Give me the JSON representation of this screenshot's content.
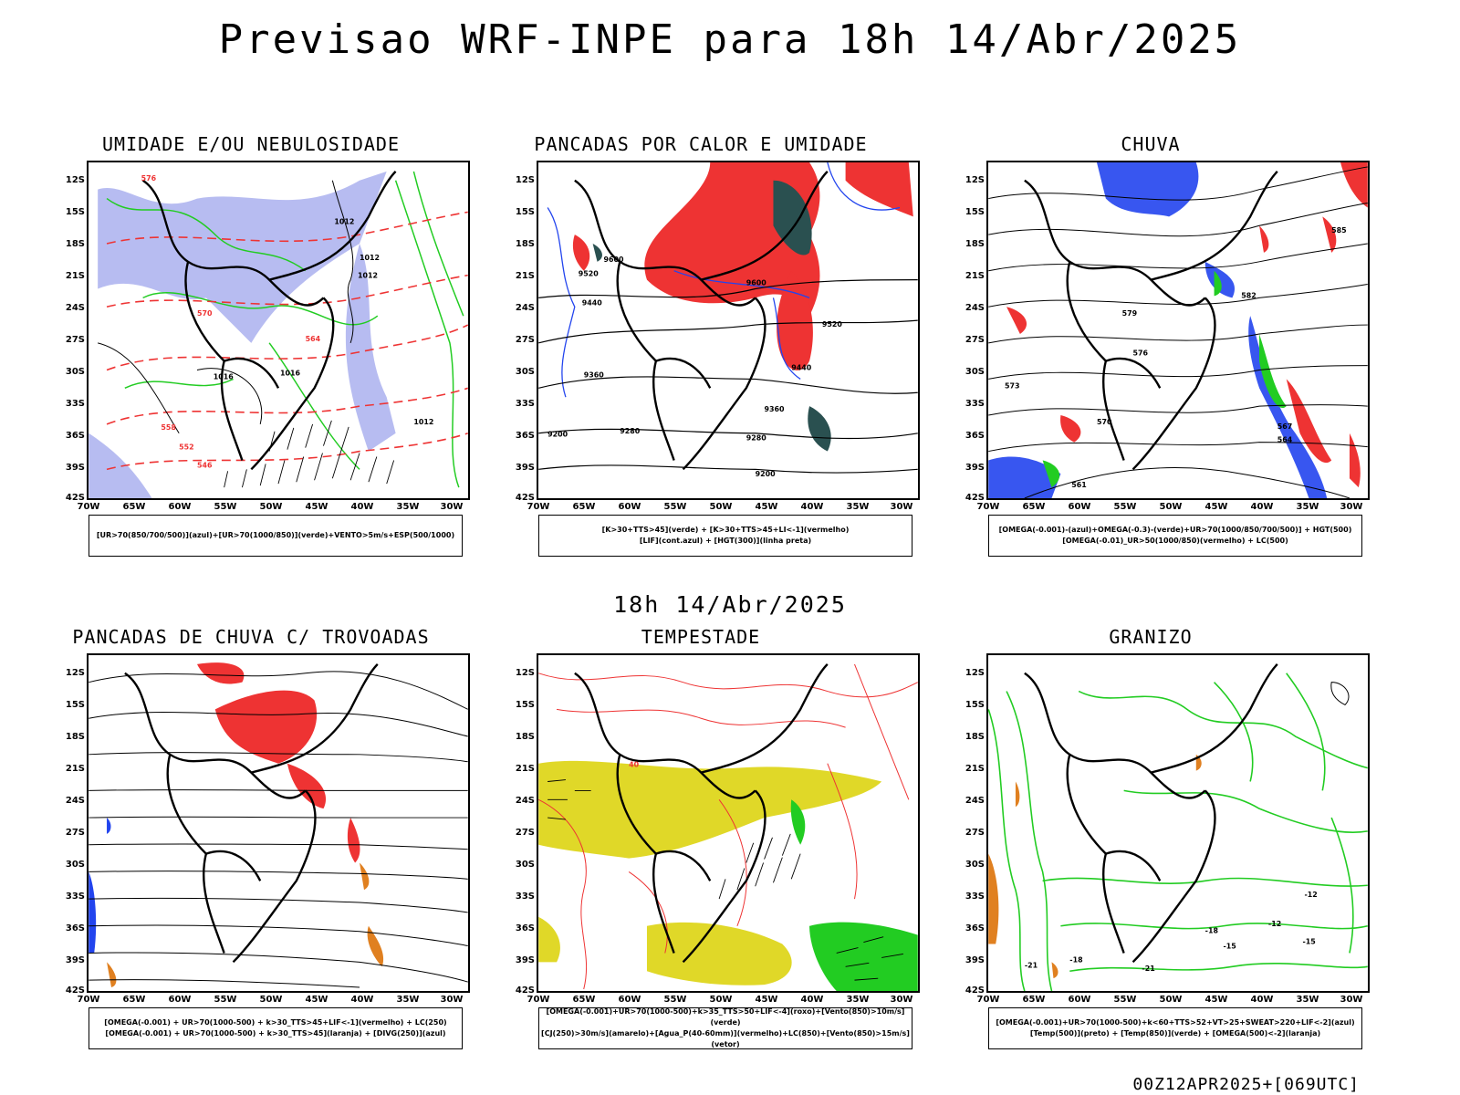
{
  "header": {
    "title": "Previsao WRF-INPE  para 18h 14/Abr/2025"
  },
  "middle": {
    "subtitle": "18h 14/Abr/2025"
  },
  "footer": {
    "stamp": "00Z12APR2025+[069UTC]"
  },
  "axes": {
    "lat_labels": [
      "12S",
      "15S",
      "18S",
      "21S",
      "24S",
      "27S",
      "30S",
      "33S",
      "36S",
      "39S",
      "42S"
    ],
    "lon_labels": [
      "70W",
      "65W",
      "60W",
      "55W",
      "50W",
      "45W",
      "40W",
      "35W",
      "30W"
    ]
  },
  "colors": {
    "blue_fill": "#aab0ee",
    "green": "#22cc22",
    "red": "#ee3333",
    "dark_teal": "#2a5050",
    "yellow": "#e0d828",
    "orange": "#e08020",
    "blue": "#2244ee"
  },
  "panels": [
    {
      "title": "UMIDADE E/OU NEBULOSIDADE",
      "legend": [
        "[UR>70(850/700/500)](azul)+[UR>70(1000/850)](verde)+VENTO>5m/s+ESP(500/1000)"
      ],
      "contour_labels": [
        "1012",
        "1012",
        "1012",
        "1016",
        "1016",
        "1012",
        "576",
        "570",
        "564",
        "558",
        "552",
        "546"
      ]
    },
    {
      "title": "PANCADAS POR CALOR E UMIDADE",
      "legend": [
        "[K>30+TTS>45](verde) + [K>30+TTS>45+LI<-1](vermelho)",
        "[LIF](cont.azul) + [HGT(300)](linha preta)"
      ],
      "contour_labels": [
        "9600",
        "9520",
        "9440",
        "9600",
        "9520",
        "9440",
        "9360",
        "9360",
        "9280",
        "9200",
        "9200",
        "9280"
      ]
    },
    {
      "title": "CHUVA",
      "legend": [
        "[OMEGA(-0.001)-(azul)+OMEGA(-0.3)-(verde)+UR>70(1000/850/700/500)] + HGT(500)",
        "[OMEGA(-0.01)_UR>50(1000/850)(vermelho) + LC(500)"
      ],
      "contour_labels": [
        "582",
        "579",
        "576",
        "573",
        "570",
        "567",
        "564",
        "561",
        "585"
      ]
    },
    {
      "title": "PANCADAS DE CHUVA C/ TROVOADAS",
      "legend": [
        "[OMEGA(-0.001) + UR>70(1000-500) + k>30_TTS>45+LIF<-1](vermelho) + LC(250)",
        "[OMEGA(-0.001) + UR>70(1000-500) + k>30_TTS>45](laranja) + [DIVG(250)](azul)"
      ],
      "contour_labels": []
    },
    {
      "title": "TEMPESTADE",
      "legend": [
        "[OMEGA(-0.001)+UR>70(1000-500)+k>35_TTS>50+LIF<-4](roxo)+[Vento(850)>10m/s](verde)",
        "[CJ(250)>30m/s](amarelo)+[Agua_P(40-60mm)](vermelho)+LC(850)+[Vento(850)>15m/s](vetor)"
      ],
      "contour_labels": [
        "40"
      ]
    },
    {
      "title": "GRANIZO",
      "legend": [
        "[OMEGA(-0.001)+UR>70(1000-500)+k<60+TTS>52+VT>25+SWEAT>220+LIF<-2](azul)",
        "[Temp(500)](preto) + [Temp(850)](verde) + [OMEGA(500)<-2](laranja)"
      ],
      "contour_labels": [
        "-12",
        "-15",
        "-18",
        "-21",
        "-15",
        "-18",
        "-12",
        "-21"
      ]
    }
  ]
}
